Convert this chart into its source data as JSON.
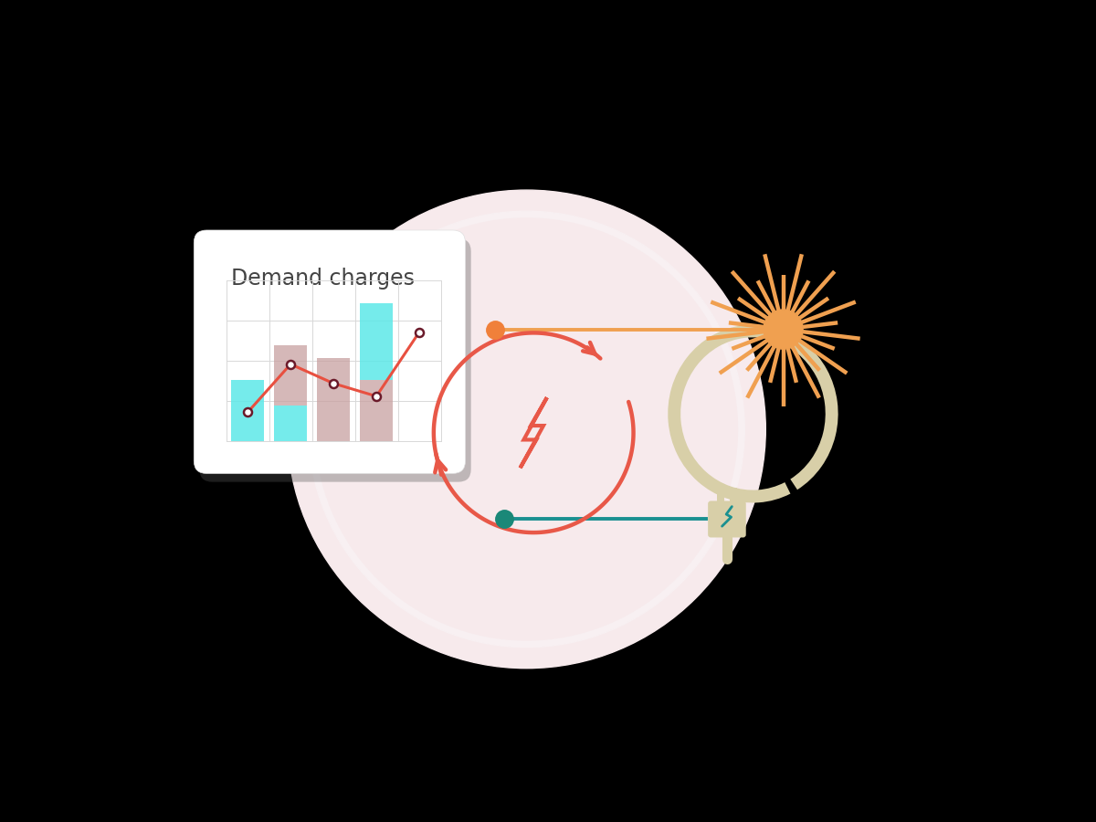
{
  "bg_color": "#000000",
  "circle_outer_color": "#f7eaec",
  "circle_ring_color": "#f0dde0",
  "card_bg": "#ffffff",
  "card_title": "Demand charges",
  "card_title_color": "#444444",
  "bar_cyan_color": "#5de8e8",
  "bar_pink_color": "#c8a0a0",
  "line_color": "#e85040",
  "line_dot_fill": "#ffffff",
  "line_dot_edge": "#6a1a2a",
  "grid_color": "#d8d8d8",
  "sun_color": "#f0a050",
  "plug_color": "#d8cfa8",
  "teal_line_color": "#1a9090",
  "teal_dot_color": "#1a8878",
  "orange_dot_color": "#f0803a",
  "cycle_arrow_color": "#e85848",
  "bolt_color": "#e85848",
  "white_ring_color": "#f8f0f2",
  "shadow_color": "#555555",
  "card_border_color": "#e0e0e0"
}
